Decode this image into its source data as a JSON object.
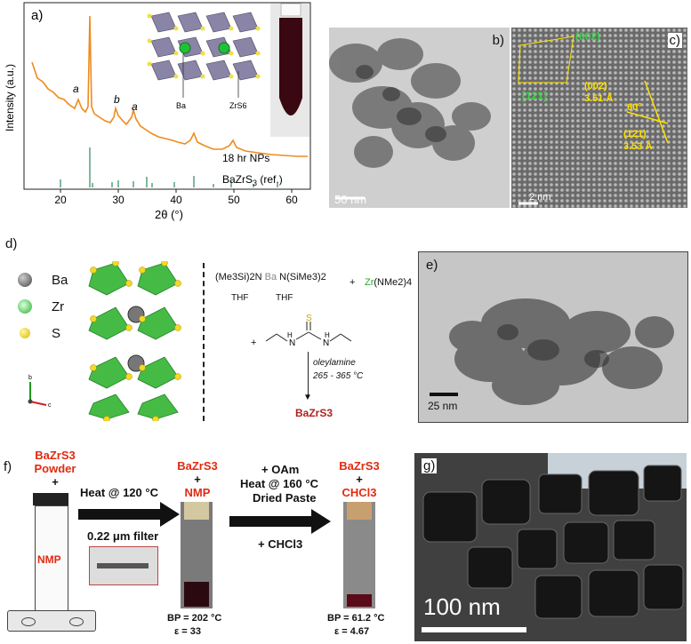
{
  "panel_a": {
    "label": "a)",
    "ylabel": "Intensity (a.u.)",
    "xlabel": "2θ (°)",
    "xticks": [
      "20",
      "30",
      "40",
      "50",
      "60"
    ],
    "peak_labels": [
      "a",
      "a",
      "b",
      "a"
    ],
    "series_np": "18 hr NPs",
    "series_ref": "BaZrS3 (ref.)",
    "inset_labels": {
      "ba": "Ba",
      "zrs6": "ZrS6"
    },
    "colors": {
      "np": "#f08a1e",
      "ref": "#2a8a5a"
    }
  },
  "panel_b": {
    "label": "b)",
    "scale": "50 nm"
  },
  "panel_c": {
    "label": "c)",
    "scale": "2 nm",
    "ann_002_green": "(002)",
    "ann_121_green": "[121]",
    "ann_002_yellow": "(002)",
    "d_002": "3.51 Å",
    "angle": "60°",
    "ann_121_yellow": "(121)",
    "d_121": "3.53 Å"
  },
  "panel_d": {
    "label": "d)",
    "legend": [
      {
        "name": "Ba",
        "color": "#555555"
      },
      {
        "name": "Zr",
        "color": "#3cc43c"
      },
      {
        "name": "S",
        "color": "#f0d020"
      }
    ],
    "axes": {
      "b": "b",
      "c": "c"
    },
    "reagent1_left": "(Me3Si)2N",
    "reagent1_right": "N(SiMe3)2",
    "reagent1_metal": "Ba",
    "reagent1_thf1": "THF",
    "reagent1_thf2": "THF",
    "plus1": "+",
    "reagent2_metal": "Zr",
    "reagent2_rest": "(NMe2)4",
    "plus2": "+",
    "thiourea_s": "S",
    "thiourea_h1": "H",
    "thiourea_h2": "H",
    "thiourea_n1": "N",
    "thiourea_n2": "N",
    "solvent": "oleylamine",
    "temperature": "265 - 365 °C",
    "product": "BaZrS3"
  },
  "panel_e": {
    "label": "e)",
    "scale": "25 nm"
  },
  "panel_f": {
    "label": "f)",
    "start_1": "BaZrS3",
    "start_2": "Powder",
    "start_plus": "+",
    "vial_label": "NMP",
    "step1_a": "Heat @ 120 °C",
    "step1_b": "0.22 μm filter",
    "mid_1": "BaZrS3",
    "mid_plus": "+",
    "mid_2": "NMP",
    "mid_bp": "BP = 202 °C",
    "mid_eps": "ε = 33",
    "step2_a": "+ OAm",
    "step2_b": "Heat @ 160 °C",
    "step2_c": "Dried Paste",
    "step2_d": "+ CHCl3",
    "end_1": "BaZrS3",
    "end_plus": "+",
    "end_2": "CHCl3",
    "end_bp": "BP = 61.2 °C",
    "end_eps": "ε = 4.67"
  },
  "panel_g": {
    "label": "g)",
    "scale": "100 nm"
  }
}
